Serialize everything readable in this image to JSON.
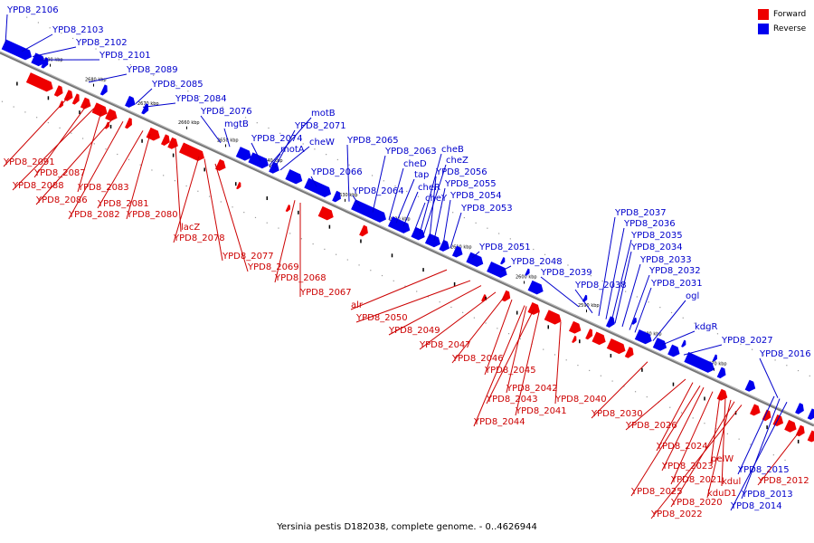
{
  "caption": "Yersinia pestis D182038, complete genome. - 0..4626944",
  "legend": [
    {
      "label": "Forward",
      "color": "#ee0000"
    },
    {
      "label": "Reverse",
      "color": "#0000ee"
    }
  ],
  "colors": {
    "forward": "#ee0000",
    "reverse": "#0000ee",
    "axis": "#666666",
    "label_forward": "#cc0000",
    "label_reverse": "#0000cc"
  },
  "ticks": [
    "2690 kbp",
    "2680 kbp",
    "2670 kbp",
    "2660 kbp",
    "2650 kbp",
    "2640 kbp",
    "2630 kbp",
    "2620 kbp",
    "2610 kbp",
    "2600 kbp",
    "2590 kbp",
    "2580 kbp",
    "2570 kbp"
  ],
  "reverse_labels": [
    "YPD8_2106",
    "YPD8_2103",
    "YPD8_2102",
    "YPD8_2101",
    "YPD8_2089",
    "YPD8_2085",
    "YPD8_2084",
    "YPD8_2076",
    "mgtB",
    "YPD8_2074",
    "motB",
    "YPD8_2071",
    "cheW",
    "motA",
    "YPD8_2066",
    "YPD8_2065",
    "YPD8_2064",
    "YPD8_2063",
    "cheD",
    "tap",
    "cheR",
    "cheY",
    "cheB",
    "cheZ",
    "YPD8_2056",
    "YPD8_2055",
    "YPD8_2054",
    "YPD8_2053",
    "YPD8_2051",
    "YPD8_2048",
    "YPD8_2039",
    "YPD8_2038",
    "YPD8_2037",
    "YPD8_2036",
    "YPD8_2035",
    "YPD8_2034",
    "YPD8_2033",
    "YPD8_2032",
    "YPD8_2031",
    "ogl",
    "kdgR",
    "YPD8_2027",
    "YPD8_2016",
    "YPD8_2015",
    "YPD8_2013",
    "YPD8_2014"
  ],
  "forward_labels": [
    "YPD8_2091",
    "YPD8_2087",
    "YPD8_2088",
    "YPD8_2086",
    "YPD8_2083",
    "YPD8_2081",
    "YPD8_2082",
    "YPD8_2080",
    "lacZ",
    "YPD8_2078",
    "YPD8_2077",
    "YPD8_2069",
    "YPD8_2068",
    "YPD8_2067",
    "alr",
    "YPD8_2050",
    "YPD8_2049",
    "YPD8_2047",
    "YPD8_2046",
    "YPD8_2045",
    "YPD8_2042",
    "YPD8_2043",
    "YPD8_2041",
    "YPD8_2040",
    "YPD8_2044",
    "YPD8_2030",
    "YPD8_2026",
    "YPD8_2024",
    "YPD8_2023",
    "pelW",
    "kdul",
    "YPD8_2021",
    "YPD8_2025",
    "kduD1",
    "YPD8_2020",
    "YPD8_2022",
    "YPD8_2012"
  ]
}
